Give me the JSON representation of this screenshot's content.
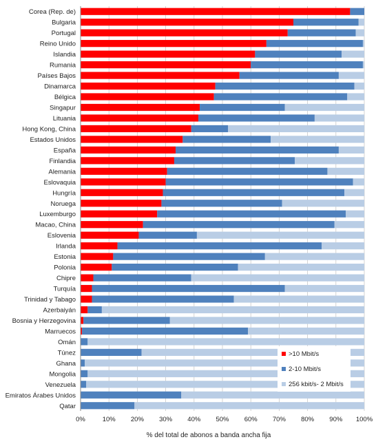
{
  "chart_data": {
    "type": "bar",
    "orientation": "horizontal",
    "stacked": true,
    "xlabel": "% del total de abonos a banda ancha fija",
    "ylabel": "",
    "xlim": [
      0,
      100
    ],
    "x_ticks": [
      "0%",
      "10%",
      "20%",
      "30%",
      "40%",
      "50%",
      "60%",
      "70%",
      "80%",
      "90%",
      "100%"
    ],
    "grid": true,
    "legend_position": "bottom-right",
    "categories": [
      "Corea (Rep. de)",
      "Bulgaria",
      "Portugal",
      "Reino Unido",
      "Islandia",
      "Rumania",
      "Países Bajos",
      "Dinamarca",
      "Bélgica",
      "Singapur",
      "Lituania",
      "Hong Kong, China",
      "Estados Unidos",
      "España",
      "Finlandia",
      "Alemania",
      "Eslovaquia",
      "Hungría",
      "Noruega",
      "Luxemburgo",
      "Macao, China",
      "Eslovenia",
      "Irlanda",
      "Estonia",
      "Polonia",
      "Chipre",
      "Turquía",
      "Trinidad y Tabago",
      "Azerbaiyán",
      "Bosnia y Herzegovina",
      "Marruecos",
      "Omán",
      "Túnez",
      "Ghana",
      "Mongolia",
      "Venezuela",
      "Emiratos Árabes Unidos",
      "Qatar"
    ],
    "series": [
      {
        "name": ">10 Mbit/s",
        "color": "#ff0000",
        "values": [
          95,
          75,
          73,
          65.5,
          61.5,
          60,
          56,
          47.5,
          47,
          42,
          41.5,
          39,
          36,
          33.5,
          33,
          30.5,
          30,
          29,
          28.5,
          27,
          22,
          20.5,
          13,
          11.5,
          11,
          4.5,
          4,
          4,
          2.5,
          1,
          0.5,
          0,
          0,
          0,
          0,
          0,
          0,
          0
        ]
      },
      {
        "name": "2-10 Mbit/s",
        "color": "#4f81bd",
        "values": [
          5,
          23,
          24,
          34,
          30.5,
          39.5,
          35,
          49,
          47,
          30,
          41,
          13,
          31,
          57.5,
          42.5,
          56.5,
          66,
          64,
          42.5,
          66.5,
          67.5,
          20.5,
          72,
          53.5,
          44.5,
          34.5,
          68,
          50,
          5,
          30.5,
          58.5,
          2.5,
          21.5,
          1.5,
          2.5,
          2,
          35.5,
          19
        ]
      },
      {
        "name": "256 kbit/s- 2 Mbit/s",
        "color": "#b9cde5",
        "values": [
          0,
          2,
          3,
          0.5,
          8,
          0.5,
          9,
          3.5,
          6,
          28,
          17.5,
          48,
          33,
          9,
          24.5,
          13,
          4,
          7,
          29,
          6.5,
          10.5,
          59,
          15,
          35,
          44.5,
          61,
          28,
          46,
          92.5,
          68.5,
          41,
          97.5,
          78.5,
          98.5,
          97.5,
          98,
          64.5,
          81
        ]
      }
    ]
  }
}
